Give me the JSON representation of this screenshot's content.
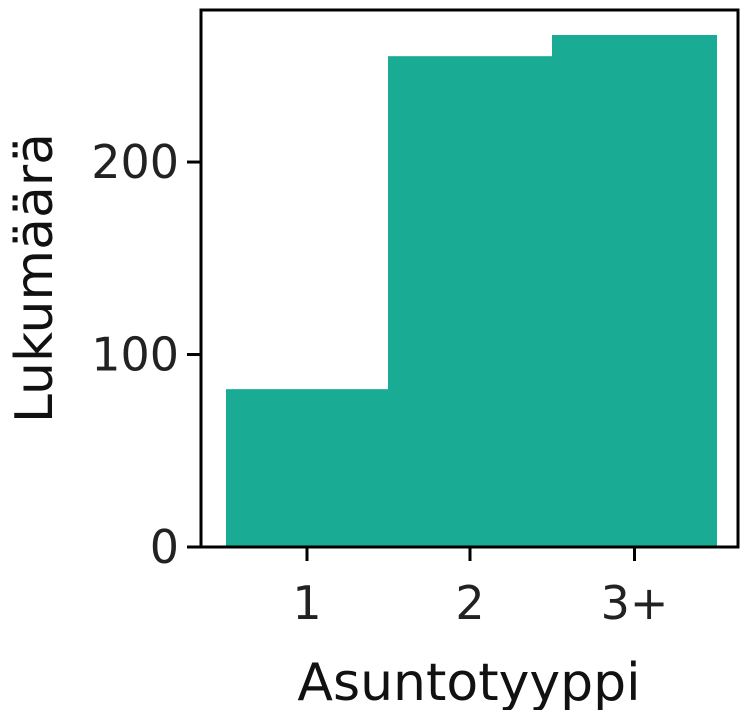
{
  "chart_data": {
    "type": "bar",
    "categories": [
      "1",
      "2",
      "3+"
    ],
    "values": [
      82,
      255,
      266
    ],
    "xlabel": "Asuntotyyppi",
    "ylabel": "Lukumäärä",
    "ylim": [
      0,
      266
    ],
    "yticks": [
      0,
      100,
      200
    ],
    "grid": false,
    "bar_color": "#1aab94"
  }
}
